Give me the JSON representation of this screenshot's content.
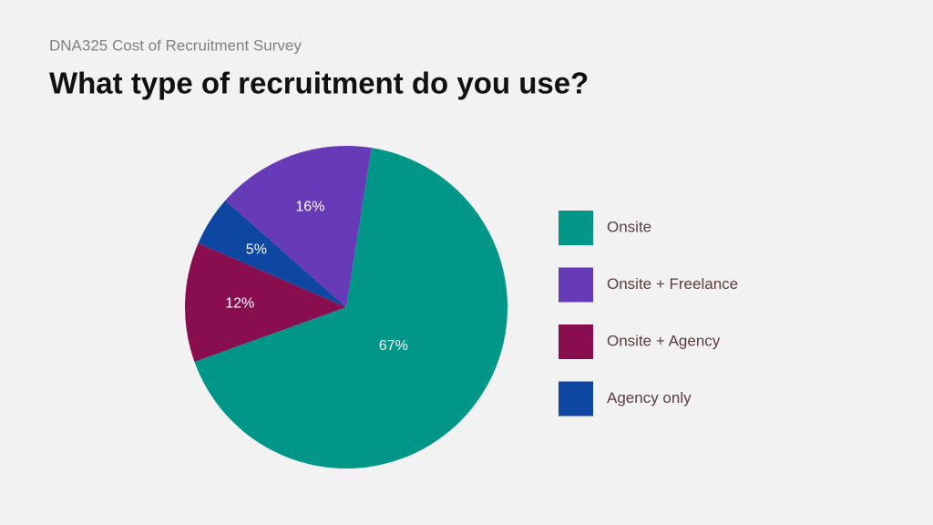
{
  "chart_data": {
    "type": "pie",
    "subtitle": "DNA325 Cost of Recruitment Survey",
    "title": "What type of recruitment do you use?",
    "categories": [
      "Onsite",
      "Onsite + Freelance",
      "Onsite + Agency",
      "Agency only"
    ],
    "values": [
      67,
      16,
      12,
      5
    ],
    "value_labels": [
      "67%",
      "16%",
      "12%",
      "5%"
    ],
    "colors": [
      "#009688",
      "#673ab7",
      "#880e4f",
      "#0d47a1"
    ],
    "legend": "right"
  }
}
